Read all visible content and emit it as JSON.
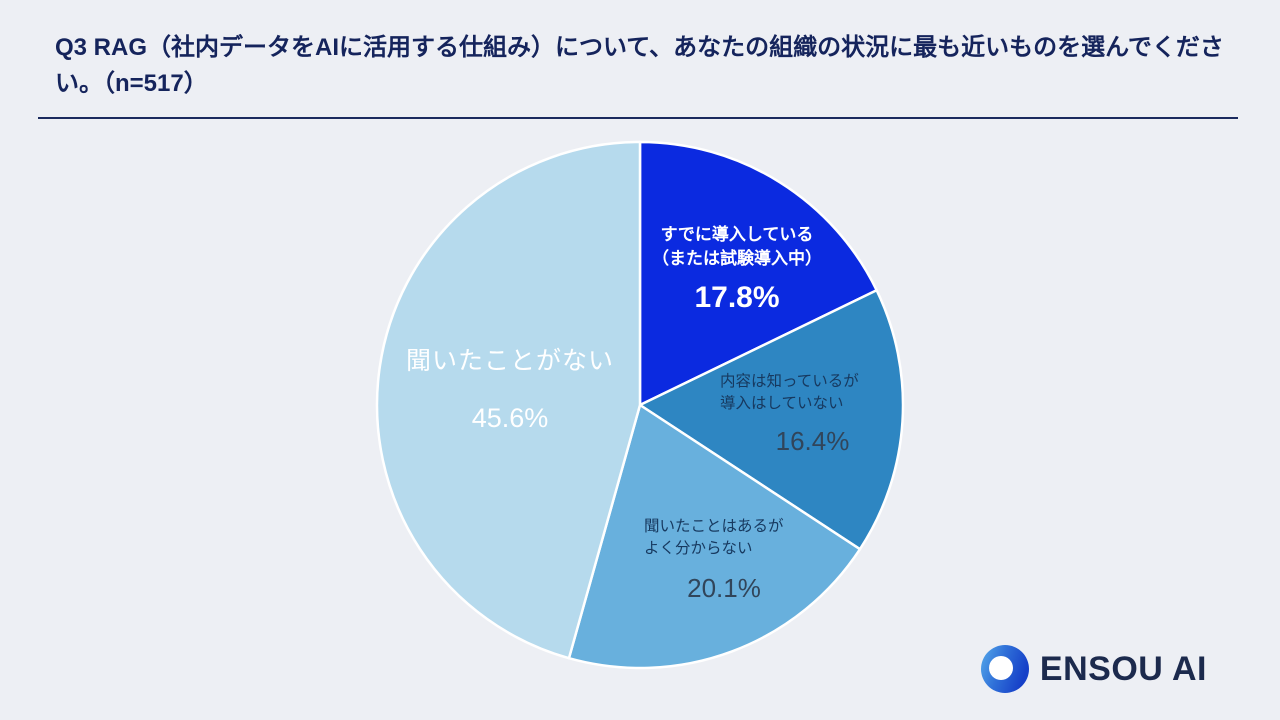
{
  "header": {
    "title": "Q3 RAG（社内データをAIに活用する仕組み）について、あなたの組織の状況に最も近いものを選んでください。（n=517）"
  },
  "chart_data": {
    "type": "pie",
    "title": "Q3 RAG（社内データをAIに活用する仕組み）について、あなたの組織の状況に最も近いものを選んでください。（n=517）",
    "sample_size_label": "n=517",
    "start_angle_deg": 0,
    "direction": "clockwise",
    "legend": "none",
    "categories": [
      "すでに導入している（または試験導入中）",
      "内容は知っているが導入はしていない",
      "聞いたことはあるがよく分からない",
      "聞いたことがない"
    ],
    "values": [
      17.8,
      16.4,
      20.1,
      45.6
    ],
    "slices": [
      {
        "label": "すでに導入している\n（または試験導入中）",
        "pct": "17.8%",
        "value": 17.8,
        "color": "#0b2ae0",
        "text_color": "#ffffff"
      },
      {
        "label": "内容は知っているが\n導入はしていない",
        "pct": "16.4%",
        "value": 16.4,
        "color": "#2e86c2",
        "text_color": "#17395f"
      },
      {
        "label": "聞いたことはあるが\nよく分からない",
        "pct": "20.1%",
        "value": 20.1,
        "color": "#68b0dd",
        "text_color": "#17395f"
      },
      {
        "label": "聞いたことがない",
        "pct": "45.6%",
        "value": 45.6,
        "color": "#b6daed",
        "text_color": "#ffffff"
      }
    ]
  },
  "footer": {
    "brand": "ENSOU AI"
  }
}
